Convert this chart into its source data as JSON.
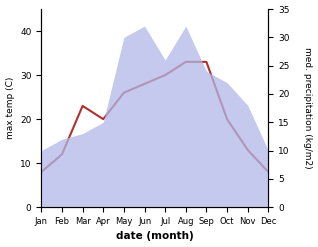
{
  "months": [
    "Jan",
    "Feb",
    "Mar",
    "Apr",
    "May",
    "Jun",
    "Jul",
    "Aug",
    "Sep",
    "Oct",
    "Nov",
    "Dec"
  ],
  "temperature": [
    8,
    12,
    23,
    20,
    26,
    28,
    30,
    33,
    33,
    20,
    13,
    8
  ],
  "precipitation": [
    10,
    12,
    13,
    15,
    30,
    32,
    26,
    32,
    24,
    22,
    18,
    10
  ],
  "temp_color": "#b03030",
  "precip_color_fill": "#b0b8e8",
  "left_ylim": [
    0,
    45
  ],
  "right_ylim": [
    0,
    35
  ],
  "left_yticks": [
    0,
    10,
    20,
    30,
    40
  ],
  "right_yticks": [
    0,
    5,
    10,
    15,
    20,
    25,
    30,
    35
  ],
  "xlabel": "date (month)",
  "ylabel_left": "max temp (C)",
  "ylabel_right": "med. precipitation (kg/m2)"
}
